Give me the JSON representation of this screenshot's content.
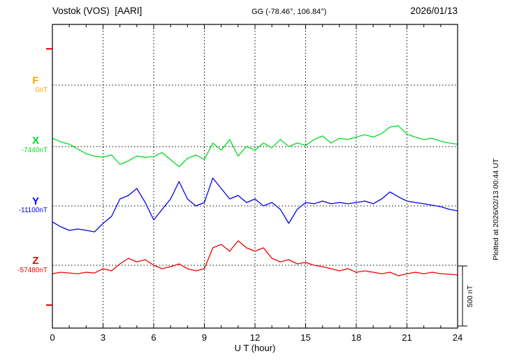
{
  "header": {
    "station": "Vostok (VOS)  [AARI]",
    "coords": "GG (-78.46°, 106.84°)",
    "date": "2026/01/13"
  },
  "plot_note": "Plotted at 2026/02/13 00:44 UT",
  "axis": {
    "x_label": "U T (hour)",
    "x_min": 0,
    "x_max": 24,
    "x_major_ticks": [
      0,
      3,
      6,
      9,
      12,
      15,
      18,
      21,
      24
    ],
    "x_minor_step_hours": 1
  },
  "scale_bar": {
    "label": "500 nT",
    "value_nT": 500
  },
  "chart_data": {
    "type": "line",
    "title": "Vostok (VOS) [AARI] magnetogram, 2026/01/13",
    "x_unit": "UT hour",
    "x_range": [
      0,
      24
    ],
    "x_step_hours": 0.5,
    "grid": "dotted vertical lines every 3 hours; dotted horizontal baseline for each component",
    "values_are": "offset in nT from each component baseline",
    "series": [
      {
        "name": "F",
        "color": "#FFA500",
        "baseline_label": "0nT",
        "baseline_nT": 0,
        "note": "no trace visible (flat / no data)",
        "values": []
      },
      {
        "name": "X",
        "color": "#00DD22",
        "baseline_label": "-7440nT",
        "baseline_nT": -7440,
        "values": [
          70,
          40,
          20,
          -20,
          -60,
          -80,
          -90,
          -70,
          -150,
          -120,
          -80,
          -90,
          -85,
          -50,
          -110,
          -170,
          -100,
          -70,
          -110,
          30,
          -30,
          60,
          -80,
          0,
          -30,
          30,
          -10,
          60,
          0,
          30,
          10,
          60,
          90,
          30,
          70,
          60,
          80,
          100,
          80,
          110,
          165,
          175,
          105,
          80,
          60,
          70,
          45,
          30,
          20
        ]
      },
      {
        "name": "Y",
        "color": "#0000EE",
        "baseline_label": "-11100nT",
        "baseline_nT": -11100,
        "values": [
          -135,
          -176,
          -206,
          -194,
          -206,
          -218,
          -147,
          -88,
          59,
          88,
          147,
          29,
          -118,
          -29,
          59,
          206,
          59,
          0,
          29,
          235,
          147,
          59,
          88,
          29,
          59,
          0,
          29,
          -29,
          -147,
          -29,
          29,
          18,
          41,
          18,
          29,
          18,
          29,
          41,
          18,
          59,
          118,
          76,
          41,
          29,
          18,
          6,
          -6,
          -29,
          -41
        ]
      },
      {
        "name": "Z",
        "color": "#EE0000",
        "baseline_label": "-57480nT",
        "baseline_nT": -57480,
        "values": [
          -71,
          -59,
          -65,
          -71,
          -59,
          -65,
          -29,
          -47,
          12,
          59,
          29,
          47,
          0,
          -29,
          -12,
          12,
          -29,
          -47,
          -29,
          147,
          176,
          118,
          206,
          147,
          118,
          147,
          59,
          29,
          47,
          12,
          24,
          0,
          -12,
          -29,
          -47,
          -29,
          -59,
          -47,
          -59,
          -71,
          -59,
          -88,
          -71,
          -59,
          -71,
          -59,
          -71,
          -76,
          -82
        ]
      }
    ]
  }
}
